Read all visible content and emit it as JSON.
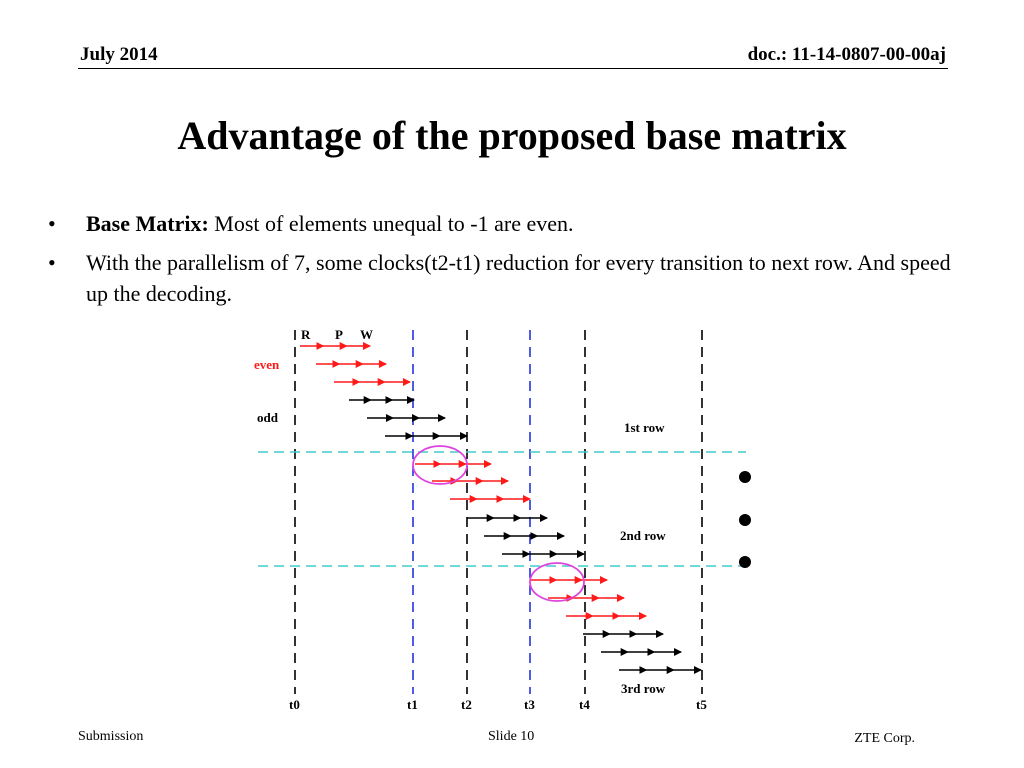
{
  "header": {
    "date": "July 2014",
    "doc": "doc.: 11-14-0807-00-00aj"
  },
  "title": "Advantage of the proposed base matrix",
  "bullets": [
    {
      "bold": "Base Matrix:",
      "text": " Most of elements unequal to -1 are even."
    },
    {
      "bold": "",
      "text": "With the parallelism of 7, some clocks(t2-t1) reduction for every transition to next row. And speed up the decoding."
    }
  ],
  "diagram": {
    "stage_labels": [
      "R",
      "P",
      "W"
    ],
    "even_label": "even",
    "odd_label": "odd",
    "row_labels": [
      "1st row",
      "2nd row",
      "3rd row"
    ],
    "time_labels": [
      "t0",
      "t1",
      "t2",
      "t3",
      "t4",
      "t5"
    ],
    "colors": {
      "even": "#ff1a1a",
      "odd": "#000000",
      "blue_dash": "#2233dd",
      "cyan_dash": "#44cccc",
      "ellipse": "#dd44dd"
    }
  },
  "footer": {
    "submission": "Submission",
    "slide": "Slide 10",
    "company": "ZTE Corp."
  }
}
